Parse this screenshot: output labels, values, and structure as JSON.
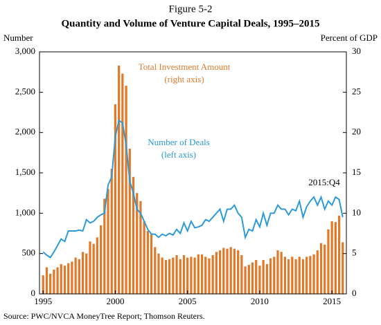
{
  "chart_data": {
    "type": "bar-line",
    "figure_label": "Figure 5-2",
    "title": "Quantity and Volume of Venture Capital Deals, 1995–2015",
    "y_label": "Number",
    "y2_label": "Percent of GDP",
    "annotations": [
      "(right axis)",
      "(left axis)",
      "2015:Q4"
    ],
    "source": "Source: PWC/NVCA MoneyTree Report; Thomson Reuters.",
    "x": [
      1995,
      1995.25,
      1995.5,
      1995.75,
      1996,
      1996.25,
      1996.5,
      1996.75,
      1997,
      1997.25,
      1997.5,
      1997.75,
      1998,
      1998.25,
      1998.5,
      1998.75,
      1999,
      1999.25,
      1999.5,
      1999.75,
      2000,
      2000.25,
      2000.5,
      2000.75,
      2001,
      2001.25,
      2001.5,
      2001.75,
      2002,
      2002.25,
      2002.5,
      2002.75,
      2003,
      2003.25,
      2003.5,
      2003.75,
      2004,
      2004.25,
      2004.5,
      2004.75,
      2005,
      2005.25,
      2005.5,
      2005.75,
      2006,
      2006.25,
      2006.5,
      2006.75,
      2007,
      2007.25,
      2007.5,
      2007.75,
      2008,
      2008.25,
      2008.5,
      2008.75,
      2009,
      2009.25,
      2009.5,
      2009.75,
      2010,
      2010.25,
      2010.5,
      2010.75,
      2011,
      2011.25,
      2011.5,
      2011.75,
      2012,
      2012.25,
      2012.5,
      2012.75,
      2013,
      2013.25,
      2013.5,
      2013.75,
      2014,
      2014.25,
      2014.5,
      2014.75,
      2015,
      2015.25,
      2015.5,
      2015.75
    ],
    "xlim": [
      1994.75,
      2016
    ],
    "xticks": [
      1995,
      2000,
      2005,
      2010,
      2015
    ],
    "ylim": [
      0,
      3000
    ],
    "yticks": [
      0,
      500,
      {
        "value": 1000,
        "label": "1,000"
      },
      {
        "value": 1500,
        "label": "1,500"
      },
      {
        "value": 2000,
        "label": "2,000"
      },
      {
        "value": 2500,
        "label": "2,500"
      },
      {
        "value": 3000,
        "label": "3,000"
      }
    ],
    "y2lim": [
      0,
      30
    ],
    "y2ticks": [
      0,
      5,
      10,
      15,
      20,
      25,
      30
    ],
    "series": [
      {
        "name": "Total Investment Amount",
        "color": "#e07a2a",
        "axis": "y2",
        "kind": "bar",
        "values": [
          2.3,
          3.3,
          2.5,
          3.0,
          3.3,
          3.7,
          3.5,
          3.8,
          4.0,
          4.5,
          4.3,
          5.2,
          5.0,
          6.5,
          6.2,
          7.0,
          8.5,
          11.8,
          13.0,
          15.5,
          23.5,
          28.3,
          27.3,
          25.8,
          18.0,
          14.5,
          12.5,
          11.5,
          9.0,
          7.8,
          7.5,
          5.8,
          5.0,
          4.5,
          4.2,
          4.3,
          4.5,
          4.8,
          4.3,
          4.8,
          4.5,
          4.6,
          4.5,
          4.9,
          4.9,
          4.6,
          4.4,
          4.8,
          5.2,
          5.4,
          5.7,
          5.6,
          5.8,
          5.6,
          5.4,
          4.8,
          3.4,
          3.6,
          3.9,
          4.2,
          3.5,
          4.2,
          3.7,
          4.4,
          4.6,
          5.4,
          5.2,
          4.6,
          4.3,
          4.6,
          4.3,
          4.6,
          4.3,
          4.6,
          4.7,
          4.9,
          5.4,
          6.3,
          6.1,
          8.0,
          9.0,
          8.9,
          9.7,
          6.4
        ]
      },
      {
        "name": "Number of Deals",
        "color": "#2b9ad8",
        "axis": "y",
        "kind": "line",
        "values": [
          520,
          480,
          450,
          520,
          600,
          680,
          650,
          780,
          780,
          780,
          790,
          780,
          920,
          880,
          900,
          950,
          980,
          1000,
          1350,
          1450,
          1950,
          2150,
          2120,
          1850,
          1400,
          1250,
          1050,
          1000,
          900,
          800,
          740,
          740,
          700,
          740,
          720,
          750,
          730,
          800,
          750,
          880,
          780,
          900,
          820,
          830,
          850,
          920,
          900,
          950,
          1000,
          1050,
          900,
          1050,
          1050,
          1100,
          1000,
          950,
          700,
          800,
          780,
          920,
          830,
          1000,
          850,
          1000,
          1000,
          1100,
          1050,
          1050,
          980,
          1050,
          1030,
          1150,
          950,
          1080,
          1150,
          1200,
          1100,
          1200,
          1050,
          1150,
          1100,
          1200,
          1170,
          950
        ]
      }
    ]
  }
}
